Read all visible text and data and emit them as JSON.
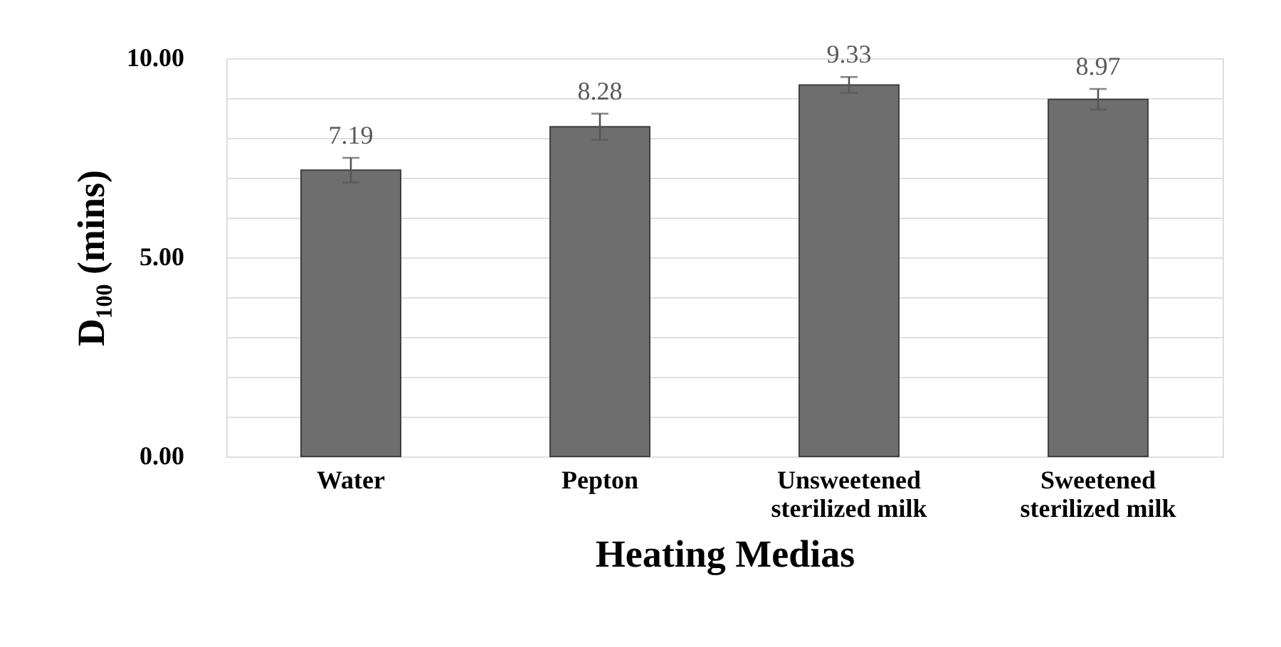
{
  "chart_data": {
    "type": "bar",
    "categories": [
      "Water",
      "Pepton",
      "Unsweetened sterilized milk",
      "Sweetened sterilized milk"
    ],
    "values": [
      7.19,
      8.28,
      9.33,
      8.97
    ],
    "errors": [
      0.31,
      0.33,
      0.2,
      0.26
    ],
    "color": "#6e6e6e",
    "xlabel": "Heating Medias",
    "ylabel": "D₁₀₀ (mins)",
    "ylim": [
      0,
      10
    ],
    "yticks": [
      {
        "value": 0,
        "label": "0.00"
      },
      {
        "value": 1,
        "label": null
      },
      {
        "value": 2,
        "label": null
      },
      {
        "value": 3,
        "label": null
      },
      {
        "value": 4,
        "label": null
      },
      {
        "value": 5,
        "label": "5.00"
      },
      {
        "value": 6,
        "label": null
      },
      {
        "value": 7,
        "label": null
      },
      {
        "value": 8,
        "label": null
      },
      {
        "value": 9,
        "label": null
      },
      {
        "value": 10,
        "label": "10.00"
      }
    ],
    "data_labels": true,
    "grid": "y"
  }
}
